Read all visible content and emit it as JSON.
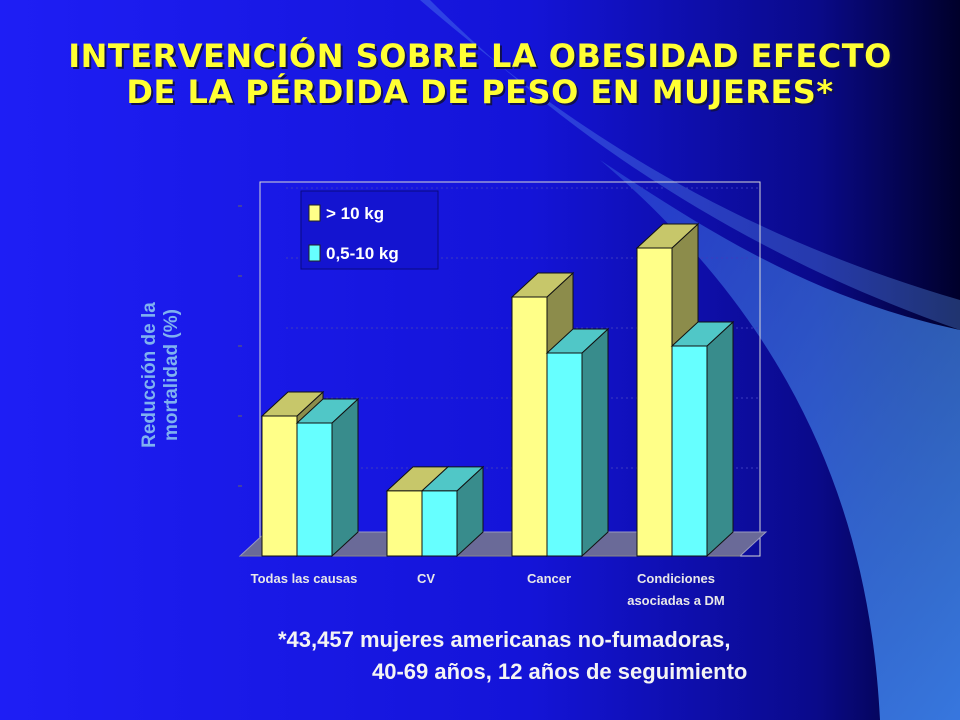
{
  "title": {
    "line1": "INTERVENCIÓN SOBRE LA OBESIDAD EFECTO",
    "line2": "DE LA PÉRDIDA  DE PESO EN MUJERES*"
  },
  "footnote": {
    "line1": "*43,457 mujeres americanas no-fumadoras,",
    "line2": "40-69 años, 12 años de seguimiento"
  },
  "colors": {
    "background_left": "#1b1bf0",
    "background_right": "#000030",
    "title": "#ffff33",
    "series_1": "#ffff88",
    "series_2": "#66ffff",
    "axis_label": "#7fb2f0"
  },
  "chart_data": {
    "type": "bar",
    "title": "",
    "ylabel": [
      "Reducción de la",
      "mortalidad (%)"
    ],
    "xlabel": "",
    "categories": [
      [
        "Todas  las causas"
      ],
      [
        "CV"
      ],
      [
        "Cancer"
      ],
      [
        "Condiciones",
        "asociadas  a DM"
      ]
    ],
    "series": [
      {
        "name": "> 10 kg",
        "values": [
          20,
          9.3,
          37,
          44
        ]
      },
      {
        "name": "0,5-10 kg",
        "values": [
          19,
          9.3,
          29,
          30
        ]
      }
    ],
    "ylim": [
      0,
      50
    ],
    "grid": true,
    "legend": "top-left",
    "three_d": true
  }
}
